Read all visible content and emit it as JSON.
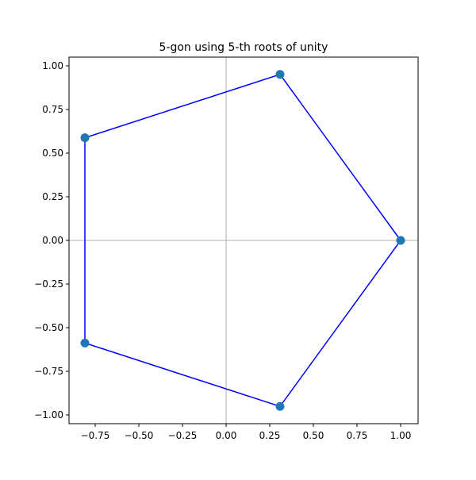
{
  "chart_data": {
    "type": "line",
    "title": "5-gon using 5-th roots of unity",
    "xlabel": "",
    "ylabel": "",
    "xlim": [
      -0.9,
      1.1
    ],
    "ylim": [
      -1.05,
      1.05
    ],
    "x_ticks": [
      -0.75,
      -0.5,
      -0.25,
      0.0,
      0.25,
      0.5,
      0.75,
      1.0
    ],
    "x_tick_labels": [
      "−0.75",
      "−0.50",
      "−0.25",
      "0.00",
      "0.25",
      "0.50",
      "0.75",
      "1.00"
    ],
    "y_ticks": [
      1.0,
      0.75,
      0.5,
      0.25,
      0.0,
      -0.25,
      -0.5,
      -0.75,
      -1.0
    ],
    "y_tick_labels": [
      "1.00",
      "0.75",
      "0.50",
      "0.25",
      "0.00",
      "−0.25",
      "−0.50",
      "−0.75",
      "−1.00"
    ],
    "reference_lines": {
      "x": 0,
      "y": 0,
      "color": "#999999"
    },
    "grid": false,
    "series": [
      {
        "kind": "polygon",
        "closed": true,
        "color": "#0000ff",
        "x": [
          1.0,
          0.309,
          -0.809,
          -0.809,
          0.309
        ],
        "y": [
          0.0,
          0.951,
          0.588,
          -0.588,
          -0.951
        ]
      },
      {
        "kind": "scatter",
        "color": "#1f77b4",
        "x": [
          1.0,
          0.309,
          -0.809,
          -0.809,
          0.309
        ],
        "y": [
          0.0,
          0.951,
          0.588,
          -0.588,
          -0.951
        ]
      }
    ]
  }
}
